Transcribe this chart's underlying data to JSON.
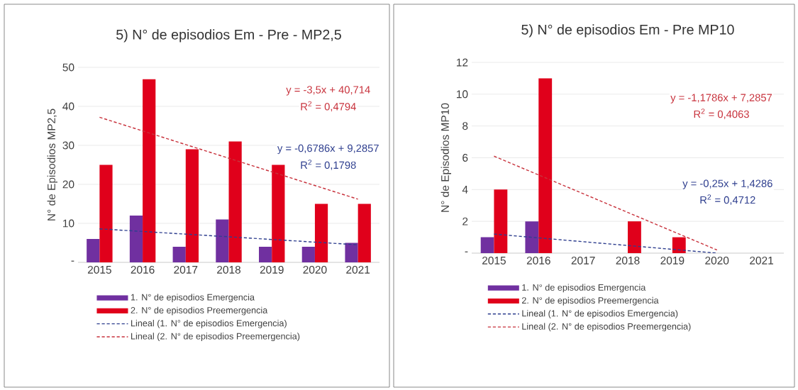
{
  "chart_data": [
    {
      "type": "bar",
      "title": "5) N° de episodios Em - Pre - MP2,5",
      "ylabel": "N° de Episodios MP2,5",
      "x": [
        2015,
        2016,
        2017,
        2018,
        2019,
        2020,
        2021
      ],
      "xlim": [
        2014.5,
        2021.5
      ],
      "xticks": [
        2015,
        2016,
        2017,
        2018,
        2019,
        2020,
        2021
      ],
      "ylim": [
        0,
        50
      ],
      "yticks": [
        {
          "value": 0,
          "label": "-"
        },
        10,
        20,
        30,
        40,
        50
      ],
      "grid": "y",
      "legend": "bottom",
      "series": [
        {
          "name": "1. N° de episodios Emergencia",
          "color": "#7030a0",
          "values": [
            6,
            12,
            4,
            11,
            4,
            4,
            5
          ]
        },
        {
          "name": "2. N° de episodios Preemergencia",
          "color": "#e0001b",
          "values": [
            25,
            47,
            29,
            31,
            25,
            15,
            15
          ]
        },
        {
          "name": "Lineal (1. N° de episodios Emergencia)",
          "type": "line",
          "line_style": "dashed",
          "marker": "none",
          "color": "#2f3f8f",
          "x": [
            2015,
            2021
          ],
          "values": [
            8.6,
            4.5
          ]
        },
        {
          "name": "Lineal (2. N° de episodios Preemergencia)",
          "type": "line",
          "line_style": "dashed",
          "marker": "none",
          "color": "#c8323c",
          "x": [
            2015,
            2021
          ],
          "values": [
            37.2,
            16.2
          ]
        }
      ],
      "annotations": [
        "y = -3,5x + 40,714",
        "R$^{2}$ = 0,4794",
        "y = -0,6786x + 9,2857",
        "R$^{2}$ = 0,1798"
      ]
    },
    {
      "type": "bar",
      "title": "5) N° de episodios Em - Pre MP10",
      "ylabel": "N° de Episodios MP10",
      "x": [
        2015,
        2016,
        2017,
        2018,
        2019,
        2020,
        2021
      ],
      "xlim": [
        2014.5,
        2021.5
      ],
      "xticks": [
        2015,
        2016,
        2017,
        2018,
        2019,
        2020,
        2021
      ],
      "ylim": [
        0,
        12
      ],
      "yticks": [
        {
          "value": 0,
          "label": "-"
        },
        2,
        4,
        6,
        8,
        10,
        12
      ],
      "grid": "y",
      "legend": "bottom",
      "series": [
        {
          "name": "1. N° de episodios Emergencia",
          "color": "#7030a0",
          "values": [
            1,
            2,
            0,
            0,
            0,
            0,
            0
          ]
        },
        {
          "name": "2. N° de episodios Preemergencia",
          "color": "#e0001b",
          "values": [
            4,
            11,
            0,
            2,
            1,
            0,
            0
          ]
        },
        {
          "name": "Lineal (1. N° de episodios Emergencia)",
          "type": "line",
          "line_style": "dashed",
          "marker": "none",
          "color": "#2f3f8f",
          "x": [
            2015,
            2020
          ],
          "values": [
            1.2,
            0
          ]
        },
        {
          "name": "Lineal (2. N° de episodios Preemergencia)",
          "type": "line",
          "line_style": "dashed",
          "marker": "none",
          "color": "#c8323c",
          "x": [
            2015,
            2020
          ],
          "values": [
            6.1,
            0.2
          ]
        }
      ],
      "annotations": [
        "y = -1,1786x + 7,2857",
        "R$^{2}$ = 0,4063",
        "y = -0,25x + 1,4286",
        "R$^{2}$ = 0,4712"
      ]
    }
  ]
}
